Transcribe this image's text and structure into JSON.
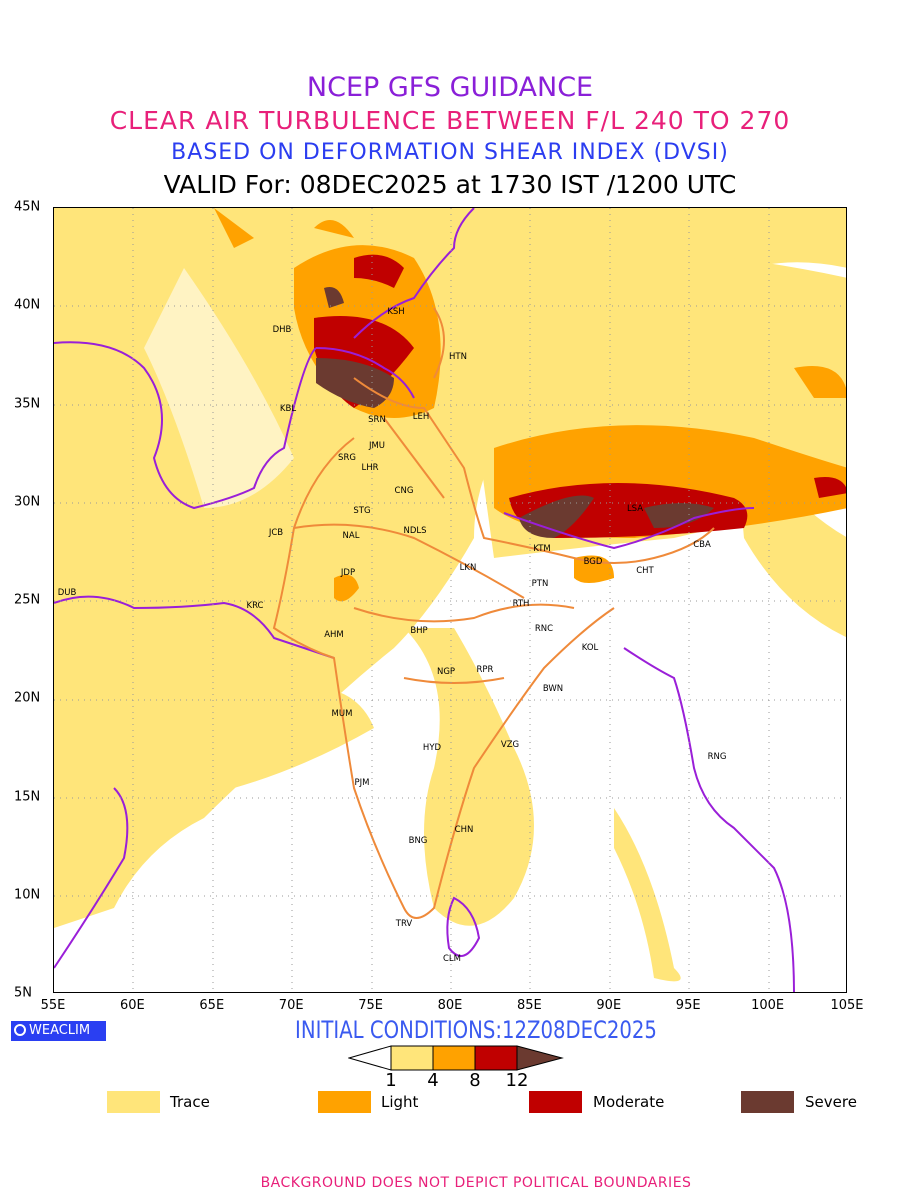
{
  "header": {
    "title": "NCEP GFS GUIDANCE",
    "subtitle": "CLEAR AIR TURBULENCE BETWEEN F/L 240 TO 270",
    "index": "BASED ON DEFORMATION SHEAR INDEX (DVSI)",
    "valid": "VALID For: 08DEC2025 at 1730 IST /1200 UTC"
  },
  "axes": {
    "lat_labels": [
      "45N",
      "40N",
      "35N",
      "30N",
      "25N",
      "20N",
      "15N",
      "10N",
      "5N"
    ],
    "lon_labels": [
      "55E",
      "60E",
      "65E",
      "70E",
      "75E",
      "80E",
      "85E",
      "90E",
      "95E",
      "100E",
      "105E"
    ]
  },
  "cities": [
    "KSH",
    "DHB",
    "HTN",
    "KBL",
    "SRN",
    "LEH",
    "JMU",
    "SRG",
    "LHR",
    "CNG",
    "STG",
    "JCB",
    "NAL",
    "NDLS",
    "LSA",
    "KTM",
    "CBA",
    "BGD",
    "LKN",
    "CHT",
    "JDP",
    "PTN",
    "DUB",
    "RTH",
    "KRC",
    "AHM",
    "BHP",
    "RNC",
    "KOL",
    "NGP",
    "RPR",
    "BWN",
    "MUM",
    "HYD",
    "VZG",
    "RNG",
    "PJM",
    "CHN",
    "BNG",
    "TRV",
    "CLM"
  ],
  "logo": "WEACLIM",
  "initial": "INITIAL CONDITIONS:12Z08DEC2025",
  "colorbar": {
    "ticks": [
      "1",
      "4",
      "8",
      "12"
    ],
    "colors": [
      "#ffe57a",
      "#ffa200",
      "#c00000",
      "#6b3a30"
    ]
  },
  "legend": [
    {
      "label": "Trace",
      "color": "#ffe57a"
    },
    {
      "label": "Light",
      "color": "#ffa200"
    },
    {
      "label": "Moderate",
      "color": "#c00000"
    },
    {
      "label": "Severe",
      "color": "#6b3a30"
    }
  ],
  "footer": "BACKGROUND DOES NOT DEPICT POLITICAL BOUNDARIES"
}
